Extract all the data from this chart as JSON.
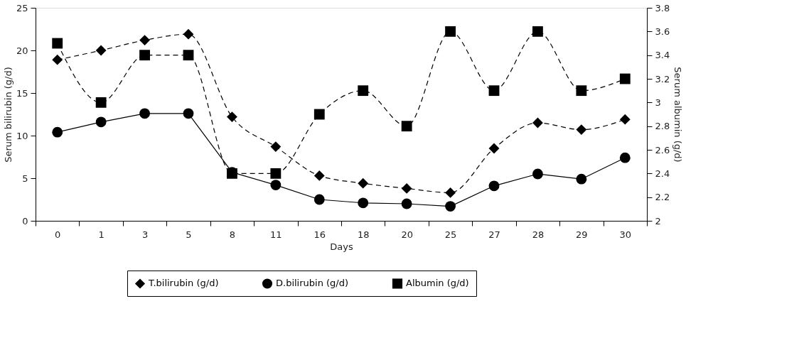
{
  "chart_data": {
    "type": "line",
    "xlabel": "Days",
    "ylabel": "Serum bilirubin (g/d)",
    "y2label": "Serum albumin (g/d)",
    "categories": [
      "0",
      "1",
      "3",
      "5",
      "8",
      "11",
      "16",
      "18",
      "20",
      "25",
      "27",
      "28",
      "29",
      "30"
    ],
    "series": [
      {
        "name": "T.bilirubin (g/d)",
        "color": "#000000",
        "marker": "diamond",
        "line_style": "dashed",
        "values": [
          18.9,
          20.0,
          21.2,
          21.9,
          12.2,
          8.7,
          5.3,
          4.4,
          3.8,
          3.3,
          8.5,
          11.5,
          10.7,
          11.9
        ]
      },
      {
        "name": "D.bilirubin (g/d)",
        "color": "#000000",
        "marker": "circle",
        "line_style": "solid",
        "values": [
          10.4,
          11.6,
          12.6,
          12.6,
          5.7,
          4.2,
          2.5,
          2.1,
          2.0,
          1.7,
          4.1,
          5.5,
          4.9,
          7.4
        ]
      },
      {
        "name": "Albumin (g/d)",
        "color": "#000000",
        "marker": "square",
        "line_style": "dashed",
        "axis": "y2",
        "values": [
          3.5,
          3.0,
          3.4,
          3.4,
          2.4,
          2.4,
          2.9,
          3.1,
          2.8,
          3.6,
          3.1,
          3.6,
          3.1,
          3.2
        ]
      }
    ],
    "ylim": [
      0,
      25
    ],
    "yticks": [
      0,
      5,
      10,
      15,
      20,
      25
    ],
    "y2lim": [
      2,
      3.8
    ],
    "y2ticks": [
      2,
      2.2,
      2.4,
      2.6,
      2.8,
      3,
      3.2,
      3.4,
      3.6,
      3.8
    ],
    "grid": false,
    "legend": "bottom"
  }
}
